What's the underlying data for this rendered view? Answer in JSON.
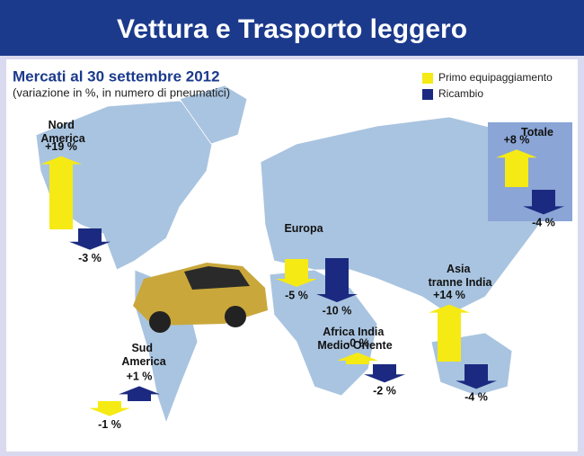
{
  "chart_data": {
    "type": "arrow-map",
    "title": "Vettura e Trasporto leggero",
    "subtitle": "Mercati al 30 settembre 2012",
    "note": "(variazione in %, in numero di pneumatici)",
    "categories": [
      "Nord America",
      "Europa",
      "Asia tranne India",
      "Africa India Medio Oriente",
      "Sud America",
      "Totale"
    ],
    "series": [
      {
        "name": "Primo equipaggiamento",
        "color": "#f5ea14",
        "values": [
          19,
          -5,
          14,
          0,
          -1,
          8
        ],
        "value_labels": [
          "+19 %",
          "-5 %",
          "+14 %",
          "-0 %",
          "-1 %",
          "+8 %"
        ]
      },
      {
        "name": "Ricambio",
        "color": "#1b2a80",
        "values": [
          -3,
          -10,
          -4,
          -2,
          1,
          -4
        ],
        "value_labels": [
          "-3 %",
          "-10 %",
          "-4 %",
          "-2 %",
          "+1 %",
          "-4 %"
        ]
      }
    ]
  }
}
